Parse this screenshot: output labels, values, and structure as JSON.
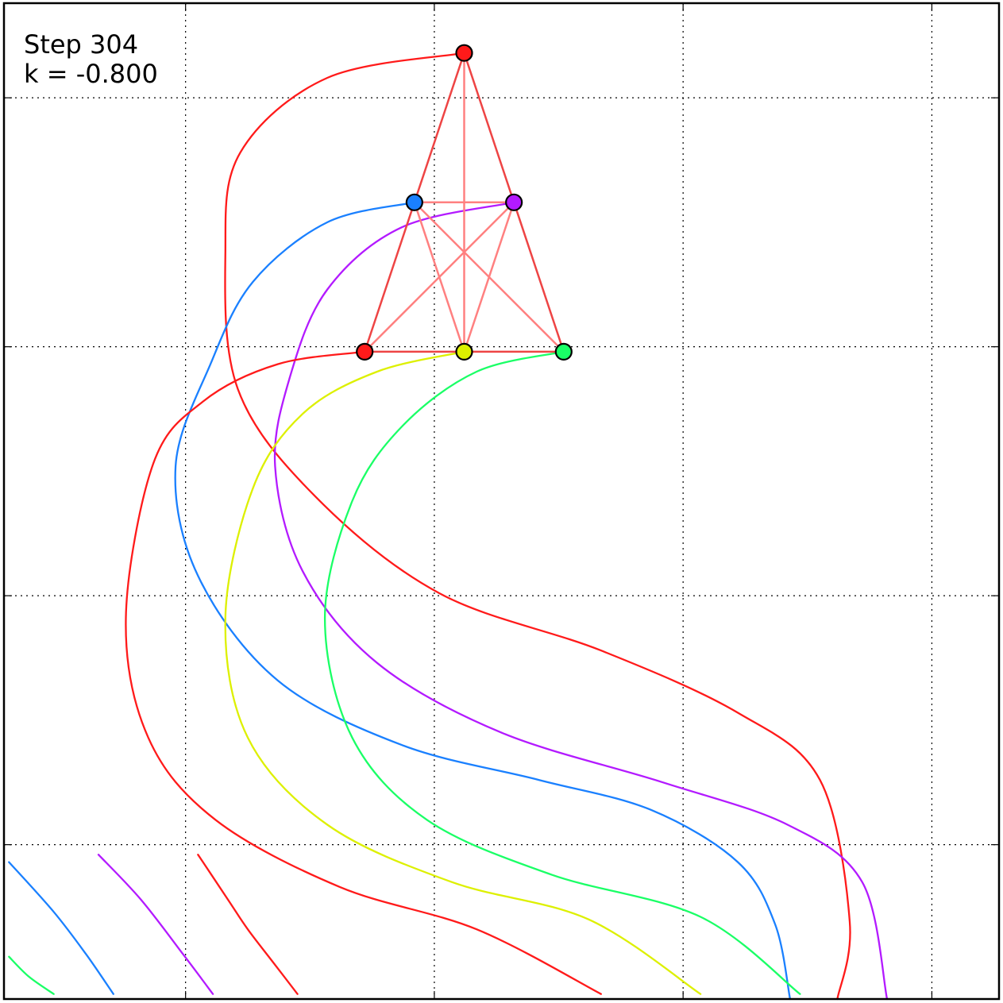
{
  "annotation": {
    "step_text": "Step 304",
    "k_text": "k = -0.800"
  },
  "colors": {
    "red": "#ff1a1a",
    "blue": "#1a80ff",
    "purple": "#b31aff",
    "yellow": "#ddf000",
    "green": "#1aff66",
    "edge": "#ee4444",
    "edge_light": "#ff8080",
    "grid": "#000000"
  },
  "chart_data": {
    "type": "line",
    "title": "",
    "xlabel": "",
    "ylabel": "",
    "xlim": [
      0,
      4
    ],
    "ylim": [
      0,
      4
    ],
    "grid": true,
    "grid_x": [
      0.73,
      1.73,
      2.73,
      3.73
    ],
    "grid_y": [
      0.62,
      1.62,
      2.62,
      3.62
    ],
    "nodes": [
      {
        "name": "top",
        "color": "red",
        "x": 1.85,
        "y": 3.8
      },
      {
        "name": "upper-left",
        "color": "blue",
        "x": 1.65,
        "y": 3.2
      },
      {
        "name": "upper-right",
        "color": "purple",
        "x": 2.05,
        "y": 3.2
      },
      {
        "name": "bottom-left",
        "color": "red",
        "x": 1.45,
        "y": 2.6
      },
      {
        "name": "bottom-middle",
        "color": "yellow",
        "x": 1.85,
        "y": 2.6
      },
      {
        "name": "bottom-right",
        "color": "green",
        "x": 2.25,
        "y": 2.6
      }
    ],
    "edges_outline": [
      [
        0,
        1
      ],
      [
        0,
        2
      ],
      [
        1,
        3
      ],
      [
        2,
        5
      ],
      [
        3,
        4
      ],
      [
        4,
        5
      ]
    ],
    "edges_inner": [
      [
        1,
        2
      ],
      [
        0,
        4
      ],
      [
        1,
        4
      ],
      [
        2,
        4
      ],
      [
        1,
        5
      ],
      [
        2,
        3
      ]
    ],
    "series": [
      {
        "color": "red",
        "points": [
          [
            1.85,
            3.8
          ],
          [
            1.3,
            3.7
          ],
          [
            0.95,
            3.4
          ],
          [
            0.89,
            3.0
          ],
          [
            0.94,
            2.45
          ],
          [
            1.25,
            2.02
          ],
          [
            1.75,
            1.63
          ],
          [
            2.4,
            1.4
          ],
          [
            2.95,
            1.15
          ],
          [
            3.28,
            0.88
          ],
          [
            3.4,
            0.31
          ],
          [
            3.35,
            0.0
          ]
        ]
      },
      {
        "color": "blue",
        "points": [
          [
            1.65,
            3.2
          ],
          [
            1.3,
            3.12
          ],
          [
            1.0,
            2.88
          ],
          [
            0.83,
            2.55
          ],
          [
            0.69,
            2.14
          ],
          [
            0.78,
            1.7
          ],
          [
            1.1,
            1.28
          ],
          [
            1.6,
            1.02
          ],
          [
            2.15,
            0.88
          ],
          [
            2.6,
            0.76
          ],
          [
            2.95,
            0.55
          ],
          [
            3.1,
            0.3
          ],
          [
            3.16,
            0.0
          ]
        ]
      },
      {
        "color": "purple",
        "points": [
          [
            2.05,
            3.2
          ],
          [
            1.6,
            3.1
          ],
          [
            1.3,
            2.85
          ],
          [
            1.15,
            2.5
          ],
          [
            1.09,
            2.14
          ],
          [
            1.2,
            1.72
          ],
          [
            1.5,
            1.35
          ],
          [
            2.0,
            1.07
          ],
          [
            2.65,
            0.87
          ],
          [
            3.15,
            0.7
          ],
          [
            3.45,
            0.47
          ],
          [
            3.55,
            0.0
          ]
        ]
      },
      {
        "color": "red",
        "points": [
          [
            1.45,
            2.6
          ],
          [
            1.1,
            2.55
          ],
          [
            0.8,
            2.4
          ],
          [
            0.6,
            2.15
          ],
          [
            0.49,
            1.53
          ],
          [
            0.58,
            1.05
          ],
          [
            0.85,
            0.72
          ],
          [
            1.35,
            0.45
          ],
          [
            1.9,
            0.28
          ],
          [
            2.4,
            0.02
          ]
        ]
      },
      {
        "color": "yellow",
        "points": [
          [
            1.85,
            2.6
          ],
          [
            1.5,
            2.52
          ],
          [
            1.2,
            2.35
          ],
          [
            1.0,
            2.05
          ],
          [
            0.89,
            1.53
          ],
          [
            0.98,
            1.05
          ],
          [
            1.3,
            0.7
          ],
          [
            1.8,
            0.47
          ],
          [
            2.35,
            0.32
          ],
          [
            2.8,
            0.02
          ]
        ]
      },
      {
        "color": "green",
        "points": [
          [
            2.25,
            2.6
          ],
          [
            1.9,
            2.52
          ],
          [
            1.6,
            2.3
          ],
          [
            1.4,
            2.0
          ],
          [
            1.29,
            1.53
          ],
          [
            1.4,
            1.05
          ],
          [
            1.7,
            0.72
          ],
          [
            2.2,
            0.5
          ],
          [
            2.8,
            0.33
          ],
          [
            3.2,
            0.02
          ]
        ]
      },
      {
        "color": "red",
        "points": [
          [
            0.78,
            0.58
          ],
          [
            0.9,
            0.4
          ],
          [
            0.98,
            0.28
          ],
          [
            1.08,
            0.15
          ],
          [
            1.18,
            0.02
          ]
        ]
      },
      {
        "color": "purple",
        "points": [
          [
            0.38,
            0.58
          ],
          [
            0.55,
            0.4
          ],
          [
            0.72,
            0.18
          ],
          [
            0.84,
            0.02
          ]
        ]
      },
      {
        "color": "blue",
        "points": [
          [
            0.02,
            0.55
          ],
          [
            0.2,
            0.35
          ],
          [
            0.33,
            0.18
          ],
          [
            0.44,
            0.02
          ]
        ]
      },
      {
        "color": "green",
        "points": [
          [
            0.02,
            0.17
          ],
          [
            0.1,
            0.09
          ],
          [
            0.2,
            0.02
          ]
        ]
      }
    ]
  }
}
